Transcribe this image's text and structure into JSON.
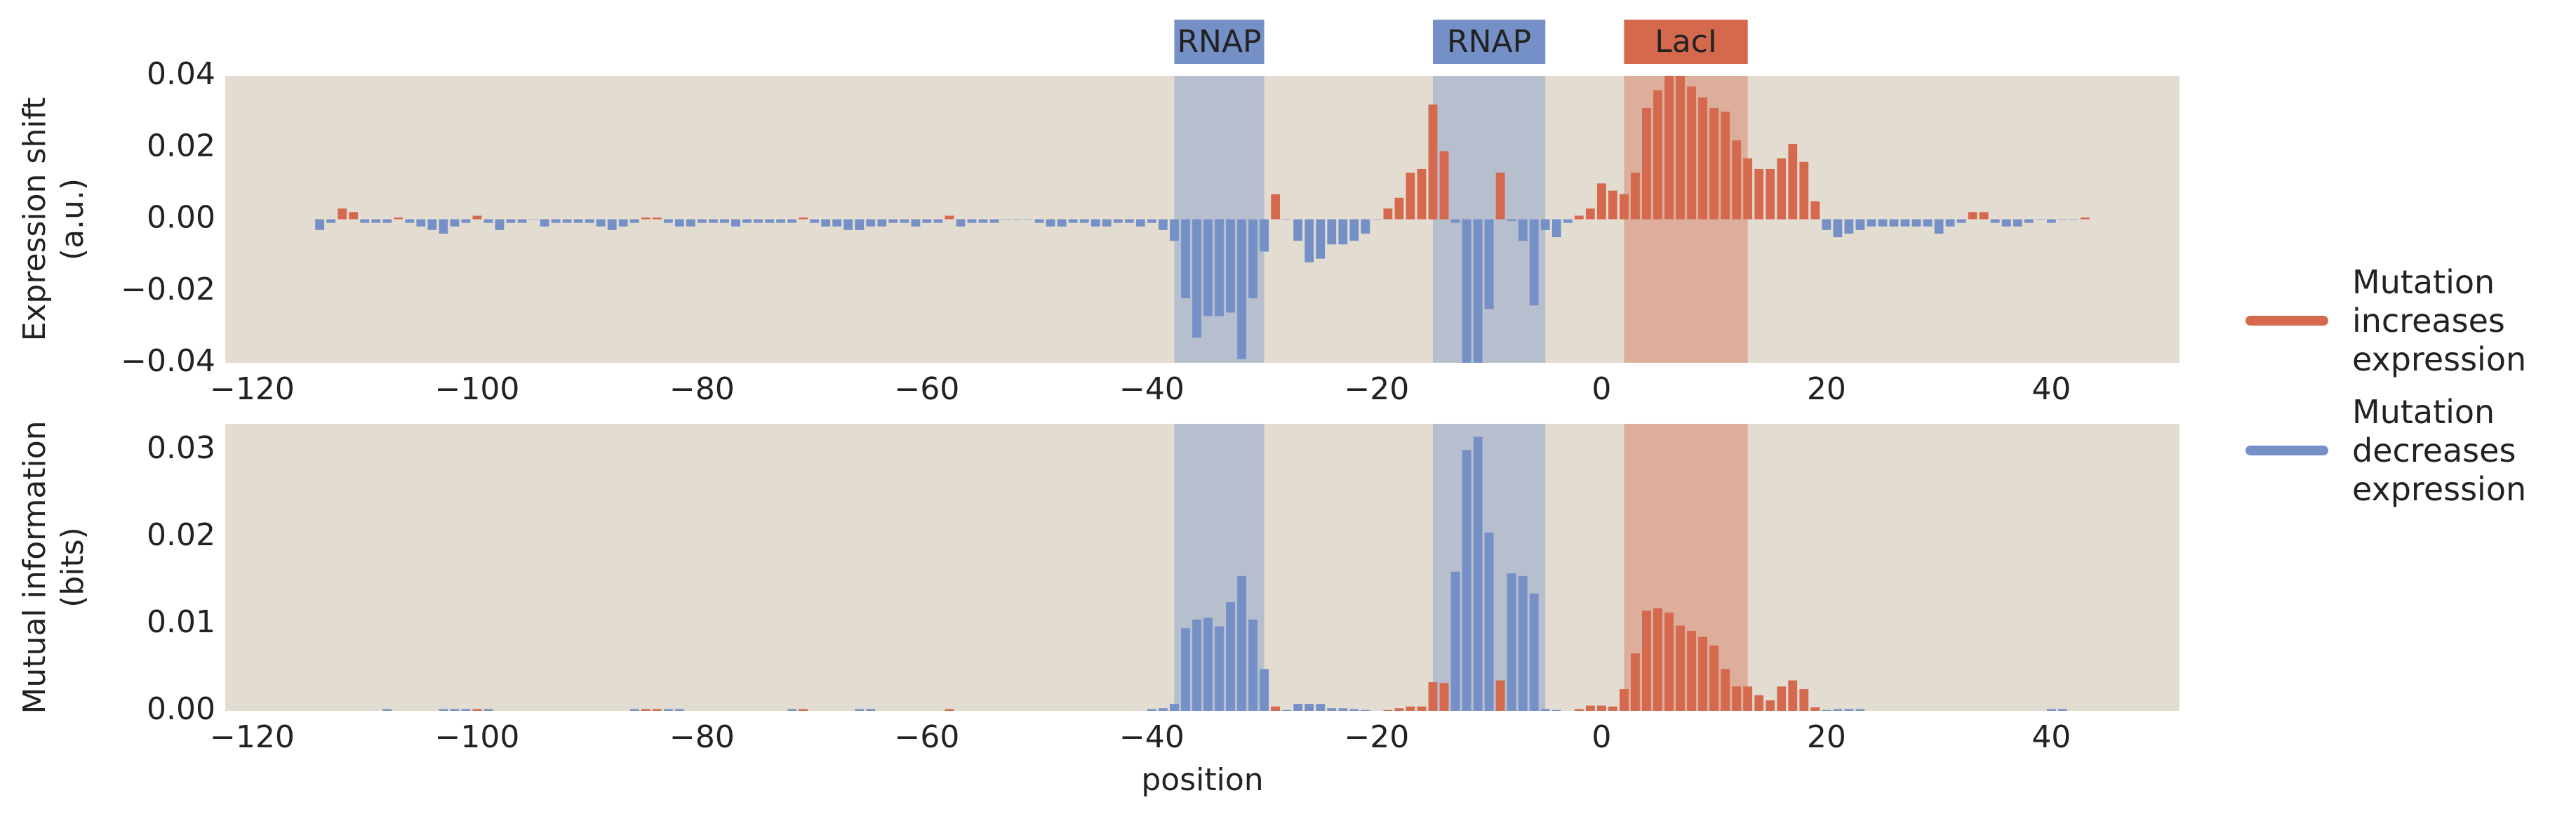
{
  "chart_data": [
    {
      "type": "bar",
      "ylabel": [
        "Expression shift",
        "(a.u.)"
      ],
      "x": [
        -114,
        -113,
        -112,
        -111,
        -110,
        -109,
        -108,
        -107,
        -106,
        -105,
        -104,
        -103,
        -102,
        -101,
        -100,
        -99,
        -98,
        -97,
        -96,
        -95,
        -94,
        -93,
        -92,
        -91,
        -90,
        -89,
        -88,
        -87,
        -86,
        -85,
        -84,
        -83,
        -82,
        -81,
        -80,
        -79,
        -78,
        -77,
        -76,
        -75,
        -74,
        -73,
        -72,
        -71,
        -70,
        -69,
        -68,
        -67,
        -66,
        -65,
        -64,
        -63,
        -62,
        -61,
        -60,
        -59,
        -58,
        -57,
        -56,
        -55,
        -54,
        -53,
        -52,
        -51,
        -50,
        -49,
        -48,
        -47,
        -46,
        -45,
        -44,
        -43,
        -42,
        -41,
        -40,
        -39,
        -38,
        -37,
        -36,
        -35,
        -34,
        -33,
        -32,
        -31,
        -30,
        -29,
        -28,
        -27,
        -26,
        -25,
        -24,
        -23,
        -22,
        -21,
        -20,
        -19,
        -18,
        -17,
        -16,
        -15,
        -14,
        -13,
        -12,
        -11,
        -10,
        -9,
        -8,
        -7,
        -6,
        -5,
        -4,
        -3,
        -2,
        -1,
        0,
        1,
        2,
        3,
        4,
        5,
        6,
        7,
        8,
        9,
        10,
        11,
        12,
        13,
        14,
        15,
        16,
        17,
        18,
        19,
        20,
        21,
        22,
        23,
        24,
        25,
        26,
        27,
        28,
        29,
        30,
        31,
        32,
        33,
        34,
        35,
        36,
        37,
        38,
        39,
        40,
        41,
        42,
        43
      ],
      "values": [
        -0.003,
        -0.001,
        0.003,
        0.002,
        -0.001,
        -0.001,
        -0.001,
        0.0005,
        -0.001,
        -0.002,
        -0.003,
        -0.004,
        -0.002,
        -0.001,
        0.001,
        -0.001,
        -0.003,
        -0.001,
        -0.001,
        0,
        -0.002,
        -0.001,
        -0.001,
        -0.001,
        -0.001,
        -0.002,
        -0.003,
        -0.002,
        -0.001,
        0.0005,
        0.0005,
        -0.001,
        -0.002,
        -0.002,
        -0.001,
        -0.001,
        -0.001,
        -0.002,
        -0.001,
        -0.001,
        -0.001,
        -0.001,
        -0.001,
        0.0005,
        -0.001,
        -0.002,
        -0.002,
        -0.003,
        -0.003,
        -0.002,
        -0.002,
        -0.001,
        -0.001,
        -0.002,
        -0.001,
        -0.001,
        0.001,
        -0.002,
        -0.001,
        -0.001,
        -0.001,
        0,
        0,
        0,
        -0.001,
        -0.002,
        -0.002,
        -0.001,
        -0.001,
        -0.002,
        -0.002,
        -0.001,
        -0.001,
        -0.002,
        -0.001,
        -0.003,
        -0.006,
        -0.022,
        -0.033,
        -0.027,
        -0.027,
        -0.026,
        -0.039,
        -0.022,
        -0.009,
        0.007,
        0,
        -0.006,
        -0.012,
        -0.011,
        -0.007,
        -0.007,
        -0.006,
        -0.004,
        0,
        0.003,
        0.006,
        0.013,
        0.014,
        0.032,
        0.019,
        -0.001,
        -0.04,
        -0.04,
        -0.025,
        0.013,
        -0.0005,
        -0.006,
        -0.024,
        -0.003,
        -0.005,
        -0.001,
        0.001,
        0.003,
        0.01,
        0.008,
        0.007,
        0.013,
        0.031,
        0.036,
        0.041,
        0.04,
        0.037,
        0.034,
        0.031,
        0.03,
        0.022,
        0.017,
        0.014,
        0.014,
        0.017,
        0.021,
        0.016,
        0.005,
        -0.003,
        -0.005,
        -0.004,
        -0.003,
        -0.002,
        -0.002,
        -0.002,
        -0.002,
        -0.002,
        -0.002,
        -0.004,
        -0.002,
        -0.001,
        0.002,
        0.002,
        -0.001,
        -0.002,
        -0.002,
        -0.001,
        0,
        -0.001,
        0,
        0,
        0.0005
      ],
      "xlim": [
        -122.4,
        51.4
      ],
      "xticks": [
        {
          "value": -120,
          "label": "−120"
        },
        {
          "value": -100,
          "label": "−100"
        },
        {
          "value": -80,
          "label": "−80"
        },
        {
          "value": -60,
          "label": "−60"
        },
        {
          "value": -40,
          "label": "−40"
        },
        {
          "value": -20,
          "label": "−20"
        },
        0,
        20,
        40
      ],
      "ylim": [
        -0.04,
        0.04
      ],
      "yticks": [
        {
          "value": -0.04,
          "label": "−0.04"
        },
        {
          "value": -0.02,
          "label": "−0.02"
        },
        {
          "value": 0,
          "label": "0.00"
        },
        0.02,
        0.04
      ],
      "regions": [
        {
          "label": "RNAP",
          "start": -38,
          "end": -30,
          "color": "#7590c7"
        },
        {
          "label": "RNAP",
          "start": -15,
          "end": -5,
          "color": "#7590c7"
        },
        {
          "label": "LacI",
          "start": 2,
          "end": 13,
          "color": "#d4694e"
        }
      ],
      "series": [
        {
          "name": "Mutation increases expression",
          "color": "#d4694e"
        },
        {
          "name": "Mutation decreases expression",
          "color": "#7590c7"
        }
      ]
    },
    {
      "type": "bar",
      "ylabel": [
        "Mutual information",
        "(bits)"
      ],
      "xlabel": "position",
      "x": [
        -114,
        -113,
        -112,
        -111,
        -110,
        -109,
        -108,
        -107,
        -106,
        -105,
        -104,
        -103,
        -102,
        -101,
        -100,
        -99,
        -98,
        -97,
        -96,
        -95,
        -94,
        -93,
        -92,
        -91,
        -90,
        -89,
        -88,
        -87,
        -86,
        -85,
        -84,
        -83,
        -82,
        -81,
        -80,
        -79,
        -78,
        -77,
        -76,
        -75,
        -74,
        -73,
        -72,
        -71,
        -70,
        -69,
        -68,
        -67,
        -66,
        -65,
        -64,
        -63,
        -62,
        -61,
        -60,
        -59,
        -58,
        -57,
        -56,
        -55,
        -54,
        -53,
        -52,
        -51,
        -50,
        -49,
        -48,
        -47,
        -46,
        -45,
        -44,
        -43,
        -42,
        -41,
        -40,
        -39,
        -38,
        -37,
        -36,
        -35,
        -34,
        -33,
        -32,
        -31,
        -30,
        -29,
        -28,
        -27,
        -26,
        -25,
        -24,
        -23,
        -22,
        -21,
        -20,
        -19,
        -18,
        -17,
        -16,
        -15,
        -14,
        -13,
        -12,
        -11,
        -10,
        -9,
        -8,
        -7,
        -6,
        -5,
        -4,
        -3,
        -2,
        -1,
        0,
        1,
        2,
        3,
        4,
        5,
        6,
        7,
        8,
        9,
        10,
        11,
        12,
        13,
        14,
        15,
        16,
        17,
        18,
        19,
        20,
        21,
        22,
        23,
        24,
        25,
        26,
        27,
        28,
        29,
        30,
        31,
        32,
        33,
        34,
        35,
        36,
        37,
        38,
        39,
        40,
        41,
        42,
        43
      ],
      "values": [
        0,
        0,
        0,
        0,
        0,
        0,
        0.0002,
        0,
        0,
        0,
        0,
        0.0002,
        0.0002,
        0.0002,
        0.0002,
        0.0002,
        0,
        0,
        0,
        0,
        0,
        0,
        0,
        0,
        0,
        0,
        0,
        0,
        0.0002,
        0.0002,
        0.0002,
        0.0002,
        0.0002,
        0,
        0,
        0,
        0,
        0,
        0,
        0,
        0,
        0,
        0.0002,
        0.0002,
        0,
        0,
        0,
        0,
        0.0002,
        0.0002,
        0,
        0,
        0,
        0,
        0,
        0,
        0.0002,
        0,
        0,
        0,
        0,
        0,
        0,
        0,
        0,
        0,
        0,
        0,
        0,
        0,
        0,
        0,
        0,
        0,
        0.0002,
        0.0003,
        0.0008,
        0.0095,
        0.0105,
        0.0107,
        0.0097,
        0.0125,
        0.0155,
        0.0105,
        0.0048,
        0.0005,
        0.0001,
        0.0008,
        0.0008,
        0.0008,
        0.0003,
        0.0003,
        0.0002,
        0.0001,
        0,
        0.0001,
        0.0003,
        0.0005,
        0.0005,
        0.0033,
        0.0032,
        0.016,
        0.03,
        0.0315,
        0.0205,
        0.0035,
        0.0158,
        0.0155,
        0.0135,
        0.0002,
        0.0001,
        0,
        0.0002,
        0.0006,
        0.0006,
        0.0005,
        0.0025,
        0.0066,
        0.0115,
        0.0118,
        0.0113,
        0.0098,
        0.0092,
        0.0085,
        0.0075,
        0.0048,
        0.0028,
        0.0028,
        0.0018,
        0.0012,
        0.0028,
        0.0035,
        0.0025,
        0.0004,
        0.0001,
        0.0002,
        0.0002,
        0.0002,
        0,
        0,
        0,
        0,
        0,
        0,
        0,
        0,
        0,
        0,
        0,
        0,
        0,
        0,
        0,
        0,
        0.0002,
        0.0002,
        0,
        0
      ],
      "xlim": [
        -122.4,
        51.4
      ],
      "xticks": [
        {
          "value": -120,
          "label": "−120"
        },
        {
          "value": -100,
          "label": "−100"
        },
        {
          "value": -80,
          "label": "−80"
        },
        {
          "value": -60,
          "label": "−60"
        },
        {
          "value": -40,
          "label": "−40"
        },
        {
          "value": -20,
          "label": "−20"
        },
        0,
        20,
        40
      ],
      "ylim": [
        0,
        0.033
      ],
      "yticks": [
        {
          "value": 0,
          "label": "0.00"
        },
        0.01,
        0.02,
        0.03
      ]
    }
  ]
}
